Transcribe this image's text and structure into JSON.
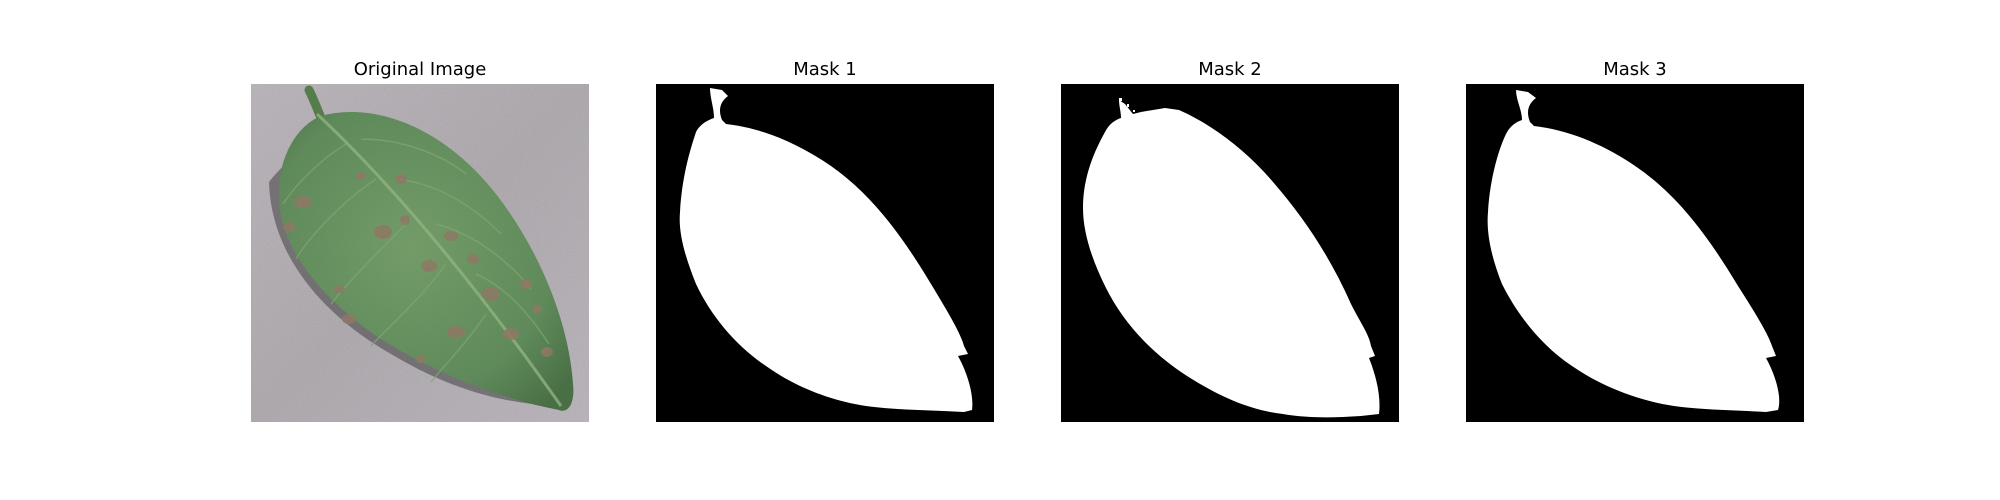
{
  "figure": {
    "panels": [
      {
        "title": "Original Image",
        "content": "leaf-photo"
      },
      {
        "title": "Mask 1",
        "content": "binary-mask"
      },
      {
        "title": "Mask 2",
        "content": "binary-mask"
      },
      {
        "title": "Mask 3",
        "content": "binary-mask"
      }
    ]
  },
  "colors": {
    "background": "#ffffff",
    "mask_background": "#000000",
    "mask_foreground": "#ffffff",
    "leaf_green": "#5f8a58",
    "leaf_dark": "#3f633c",
    "lesion_brown": "#8d7561",
    "surface_gray": "#aaa5aa"
  }
}
